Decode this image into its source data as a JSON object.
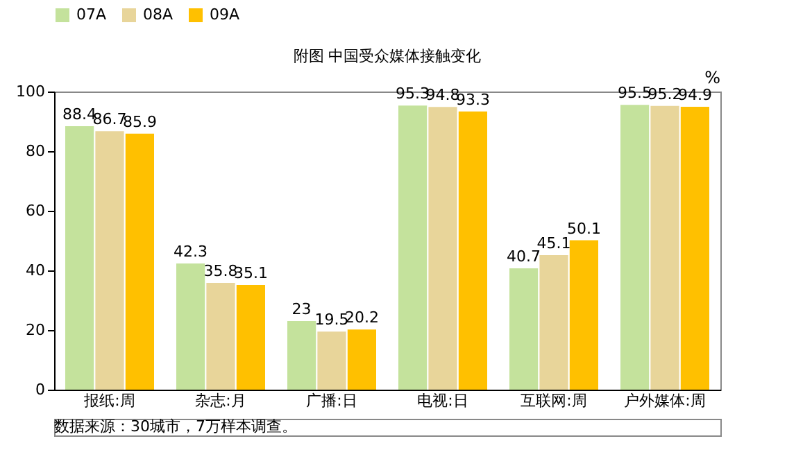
{
  "chart_data": {
    "type": "bar",
    "title": "附图 中国受众媒体接触变化",
    "categories": [
      "报纸:周",
      "杂志:月",
      "广播:日",
      "电视:日",
      "互联网:周",
      "户外媒体:周"
    ],
    "series": [
      {
        "name": "07A",
        "color": "#c4e29c",
        "values": [
          88.4,
          42.3,
          23,
          95.3,
          40.7,
          95.5
        ]
      },
      {
        "name": "08A",
        "color": "#e8d59a",
        "values": [
          86.7,
          35.8,
          19.5,
          94.8,
          45.1,
          95.2
        ]
      },
      {
        "name": "09A",
        "color": "#ffc000",
        "values": [
          85.9,
          35.1,
          20.2,
          93.3,
          50.1,
          94.9
        ]
      }
    ],
    "ylim": [
      0,
      100
    ],
    "yticks": [
      0,
      20,
      40,
      60,
      80,
      100
    ],
    "grid": false,
    "legend": "top",
    "data_labels": true,
    "annotations": [
      "%",
      "数据来源：30城市，7万样本调查。"
    ]
  }
}
